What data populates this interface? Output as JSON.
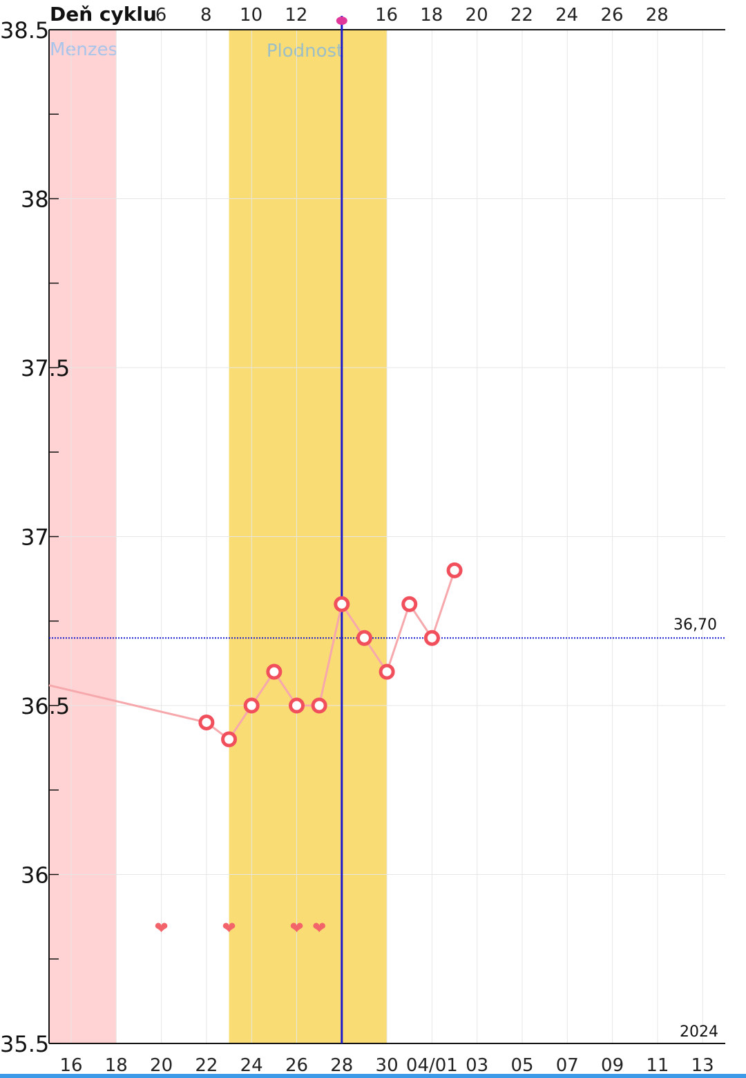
{
  "chart_data": {
    "type": "line",
    "title": "Deň cyklu",
    "y_axis": {
      "ylim": [
        35.5,
        38.5
      ],
      "ticks": [
        "35.5",
        "36",
        "36.5",
        "37",
        "37.5",
        "38",
        "38.5"
      ]
    },
    "x_axis_dates": {
      "labels": [
        "16",
        "18",
        "20",
        "22",
        "24",
        "26",
        "28",
        "30",
        "04/01",
        "03",
        "05",
        "07",
        "09",
        "11",
        "13"
      ],
      "year": "2024"
    },
    "top_axis_cycle_day": [
      "6",
      "8",
      "10",
      "12",
      "16",
      "18",
      "20",
      "22",
      "24",
      "26",
      "28"
    ],
    "bands": [
      {
        "name": "Menzes",
        "from": 15,
        "to": 18,
        "color": "#FFD3D3",
        "label_color": "#A9C4EA"
      },
      {
        "name": "Plodnosť",
        "from": 23,
        "to": 30,
        "color": "#F9DC74",
        "label_color": "#9CBFC7"
      }
    ],
    "ovulation_day": 28,
    "ovulation_color": "#1A1ACC",
    "ovulation_marker_color": "#E0379A",
    "cover_line": {
      "value": 36.7,
      "label": "36,70",
      "color": "#1A1ACC"
    },
    "series": [
      {
        "color": "#F24F5C",
        "line_color": "#F6A8AC",
        "points": [
          {
            "x": 22,
            "y": 36.45
          },
          {
            "x": 23,
            "y": 36.4
          },
          {
            "x": 24,
            "y": 36.5
          },
          {
            "x": 25,
            "y": 36.6
          },
          {
            "x": 26,
            "y": 36.5
          },
          {
            "x": 27,
            "y": 36.5
          },
          {
            "x": 28,
            "y": 36.8
          },
          {
            "x": 29,
            "y": 36.7
          },
          {
            "x": 30,
            "y": 36.6
          },
          {
            "x": 31,
            "y": 36.8
          },
          {
            "x": 32,
            "y": 36.7
          },
          {
            "x": 33,
            "y": 36.9
          }
        ],
        "entry_from": {
          "x": 15,
          "y": 36.56
        }
      }
    ],
    "intercourse_days": [
      20,
      23,
      26,
      27
    ],
    "heart_symbol": "❤",
    "heart_color": "#F2636A"
  }
}
